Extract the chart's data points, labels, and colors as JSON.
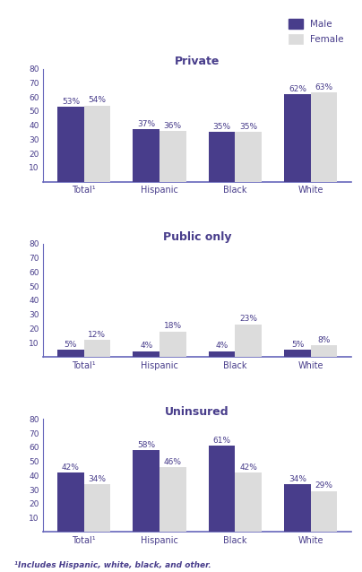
{
  "charts": [
    {
      "title": "Private",
      "categories": [
        "Total¹",
        "Hispanic",
        "Black",
        "White"
      ],
      "male_values": [
        53,
        37,
        35,
        62
      ],
      "female_values": [
        54,
        36,
        35,
        63
      ]
    },
    {
      "title": "Public only",
      "categories": [
        "Total¹",
        "Hispanic",
        "Black",
        "White"
      ],
      "male_values": [
        5,
        4,
        4,
        5
      ],
      "female_values": [
        12,
        18,
        23,
        8
      ]
    },
    {
      "title": "Uninsured",
      "categories": [
        "Total¹",
        "Hispanic",
        "Black",
        "White"
      ],
      "male_values": [
        42,
        58,
        61,
        34
      ],
      "female_values": [
        34,
        46,
        42,
        29
      ]
    }
  ],
  "male_color": "#483D8B",
  "female_color": "#dcdcdc",
  "bar_width": 0.35,
  "ylim": [
    0,
    80
  ],
  "yticks": [
    0,
    10,
    20,
    30,
    40,
    50,
    60,
    70,
    80
  ],
  "axis_color": "#6666bb",
  "title_color": "#483D8B",
  "label_color": "#483D8B",
  "tick_color": "#483D8B",
  "footnote": "¹Includes Hispanic, white, black, and other.",
  "bg_color": "#ffffff"
}
